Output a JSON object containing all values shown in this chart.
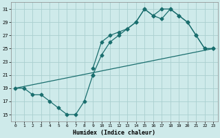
{
  "xlabel": "Humidex (Indice chaleur)",
  "bg_color": "#ceeaea",
  "line_color": "#1a6e6e",
  "grid_color": "#aacfcf",
  "xlim": [
    -0.5,
    23.5
  ],
  "ylim": [
    14.0,
    32.0
  ],
  "xticks": [
    0,
    1,
    2,
    3,
    4,
    5,
    6,
    7,
    8,
    9,
    10,
    11,
    12,
    13,
    14,
    15,
    16,
    17,
    18,
    19,
    20,
    21,
    22,
    23
  ],
  "yticks": [
    15,
    17,
    19,
    21,
    23,
    25,
    27,
    29,
    31
  ],
  "line1_x": [
    0,
    1,
    2,
    3,
    4,
    5,
    6,
    7,
    8,
    9
  ],
  "line1_y": [
    19,
    19,
    18,
    18,
    17,
    16,
    15,
    15,
    17,
    21
  ],
  "line2_x": [
    9,
    10,
    11,
    12,
    13,
    14,
    15,
    16,
    17,
    18,
    19,
    20,
    21,
    22,
    23
  ],
  "line2_y": [
    22,
    26,
    27,
    27.5,
    28,
    29,
    31,
    30,
    29.5,
    31,
    30,
    29,
    27,
    25,
    25
  ],
  "line3_x": [
    9,
    10,
    11,
    12,
    13,
    14,
    15,
    16,
    17,
    18,
    19,
    20,
    21,
    22,
    23
  ],
  "line3_y": [
    21,
    24,
    26,
    27,
    28,
    29,
    31,
    30,
    31,
    31,
    30,
    29,
    27,
    25,
    25
  ],
  "line4_x": [
    0,
    23
  ],
  "line4_y": [
    19,
    25
  ],
  "marker": "D",
  "markersize": 2.5,
  "linewidth": 0.9
}
